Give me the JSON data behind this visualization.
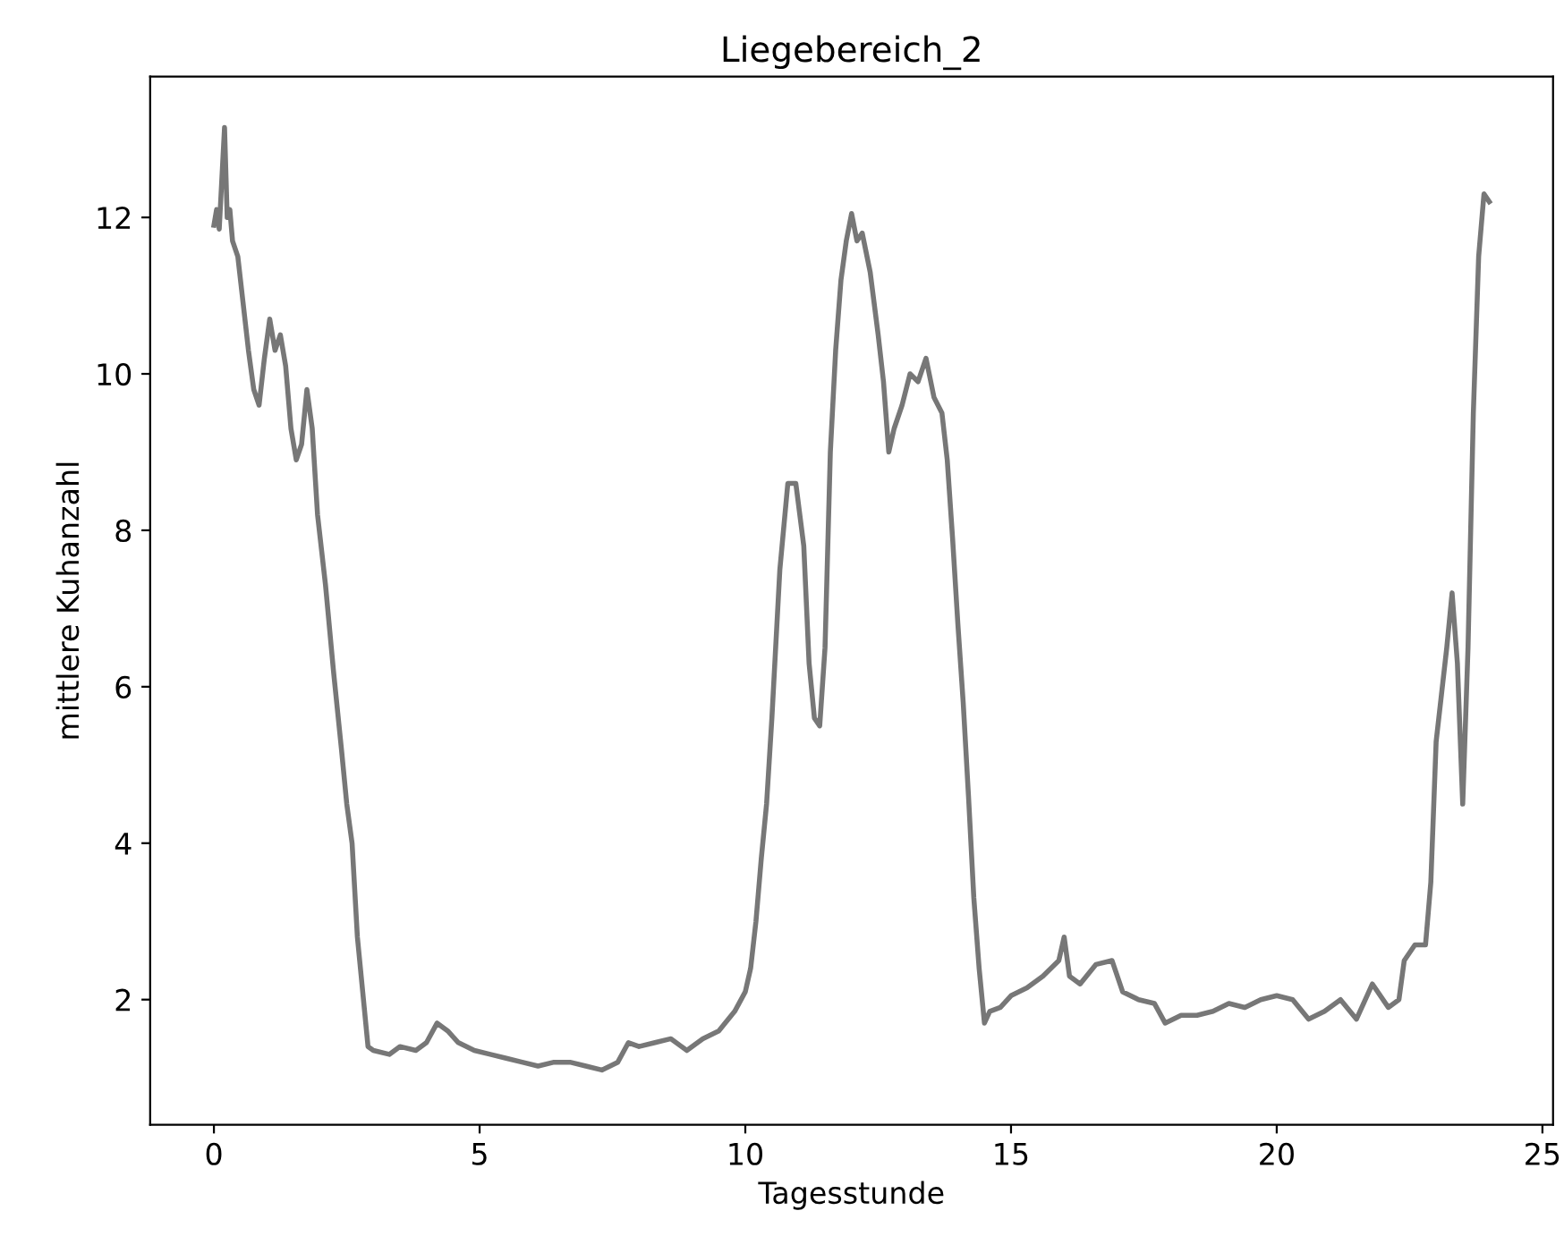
{
  "chart_data": {
    "type": "line",
    "title": "Liegebereich_2",
    "xlabel": "Tagesstunde",
    "ylabel": "mittlere Kuhanzahl",
    "xlim": [
      -1.2,
      25.2
    ],
    "xticks": [
      0,
      5,
      10,
      15,
      20,
      25
    ],
    "ylim": [
      0.4,
      13.8
    ],
    "yticks": [
      2,
      4,
      6,
      8,
      10,
      12
    ],
    "grid": false,
    "legend": false,
    "marker": "none",
    "line_style": "solid",
    "series": [
      {
        "color": "#777777",
        "x": [
          0.0,
          0.05,
          0.1,
          0.15,
          0.2,
          0.25,
          0.3,
          0.35,
          0.45,
          0.55,
          0.65,
          0.75,
          0.85,
          0.95,
          1.05,
          1.15,
          1.25,
          1.35,
          1.45,
          1.55,
          1.65,
          1.75,
          1.85,
          1.95,
          2.1,
          2.25,
          2.4,
          2.5,
          2.6,
          2.7,
          2.8,
          2.9,
          3.0,
          3.3,
          3.5,
          3.8,
          4.0,
          4.2,
          4.4,
          4.6,
          4.9,
          5.2,
          5.5,
          5.8,
          6.1,
          6.4,
          6.7,
          7.0,
          7.3,
          7.6,
          7.8,
          8.0,
          8.3,
          8.6,
          8.9,
          9.2,
          9.5,
          9.8,
          10.0,
          10.1,
          10.2,
          10.3,
          10.4,
          10.5,
          10.65,
          10.8,
          10.95,
          11.1,
          11.2,
          11.3,
          11.4,
          11.5,
          11.6,
          11.7,
          11.8,
          11.9,
          12.0,
          12.1,
          12.2,
          12.35,
          12.5,
          12.6,
          12.7,
          12.8,
          12.95,
          13.1,
          13.25,
          13.4,
          13.55,
          13.7,
          13.8,
          13.9,
          14.0,
          14.1,
          14.2,
          14.3,
          14.4,
          14.5,
          14.6,
          14.8,
          15.0,
          15.3,
          15.6,
          15.9,
          16.0,
          16.1,
          16.3,
          16.6,
          16.9,
          17.1,
          17.4,
          17.7,
          17.9,
          18.2,
          18.5,
          18.8,
          19.1,
          19.4,
          19.7,
          20.0,
          20.3,
          20.6,
          20.9,
          21.2,
          21.5,
          21.8,
          22.1,
          22.3,
          22.4,
          22.6,
          22.8,
          22.9,
          23.0,
          23.1,
          23.2,
          23.3,
          23.4,
          23.5,
          23.6,
          23.7,
          23.8,
          23.9,
          24.0
        ],
        "values": [
          11.9,
          12.1,
          11.85,
          12.5,
          13.15,
          12.0,
          12.1,
          11.7,
          11.5,
          10.9,
          10.3,
          9.8,
          9.6,
          10.2,
          10.7,
          10.3,
          10.5,
          10.1,
          9.3,
          8.9,
          9.1,
          9.8,
          9.3,
          8.2,
          7.3,
          6.2,
          5.2,
          4.5,
          4.0,
          2.8,
          2.1,
          1.4,
          1.35,
          1.3,
          1.4,
          1.35,
          1.45,
          1.7,
          1.6,
          1.45,
          1.35,
          1.3,
          1.25,
          1.2,
          1.15,
          1.2,
          1.2,
          1.15,
          1.1,
          1.2,
          1.45,
          1.4,
          1.45,
          1.5,
          1.35,
          1.5,
          1.6,
          1.85,
          2.1,
          2.4,
          3.0,
          3.8,
          4.5,
          5.6,
          7.5,
          8.6,
          8.6,
          7.8,
          6.3,
          5.6,
          5.5,
          6.5,
          9.0,
          10.3,
          11.2,
          11.7,
          12.05,
          11.7,
          11.8,
          11.3,
          10.5,
          9.9,
          9.0,
          9.3,
          9.6,
          10.0,
          9.9,
          10.2,
          9.7,
          9.5,
          8.9,
          7.9,
          6.8,
          5.8,
          4.6,
          3.3,
          2.4,
          1.7,
          1.85,
          1.9,
          2.05,
          2.15,
          2.3,
          2.5,
          2.8,
          2.3,
          2.2,
          2.45,
          2.5,
          2.1,
          2.0,
          1.95,
          1.7,
          1.8,
          1.8,
          1.85,
          1.95,
          1.9,
          2.0,
          2.05,
          2.0,
          1.75,
          1.85,
          2.0,
          1.75,
          2.2,
          1.9,
          2.0,
          2.5,
          2.7,
          2.7,
          3.5,
          5.3,
          5.9,
          6.5,
          7.2,
          6.3,
          4.5,
          6.5,
          9.5,
          11.5,
          12.3,
          12.2
        ]
      }
    ]
  }
}
